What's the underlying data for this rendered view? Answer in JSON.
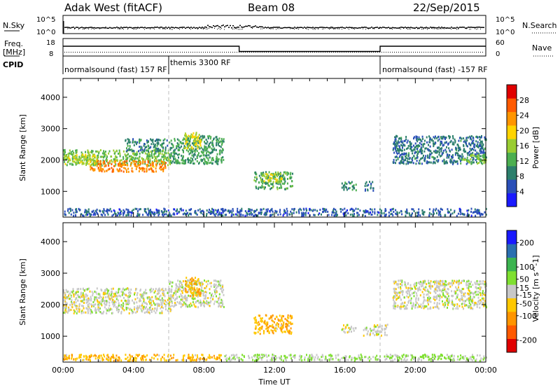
{
  "header": {
    "title": "Adak West (fitACF)",
    "beam": "Beam 08",
    "date": "22/Sep/2015"
  },
  "top_strip": {
    "left_label": "N.Sky",
    "right_label": "N.Search",
    "left_ticks": [
      "10^5",
      "10^0"
    ],
    "right_ticks": [
      "10^5",
      "10^0"
    ]
  },
  "freq_strip": {
    "left_label_1": "Freq.",
    "left_label_2": "[MHz]",
    "left_ticks": [
      "18",
      "8"
    ],
    "right_label": "Nave",
    "right_ticks": [
      "60",
      "0"
    ],
    "freq_steps": [
      {
        "start_h": 0,
        "end_h": 10,
        "mhz": 13.6
      },
      {
        "start_h": 10,
        "end_h": 18,
        "mhz": 10.6
      },
      {
        "start_h": 18,
        "end_h": 24,
        "mhz": 13.6
      }
    ],
    "freq_range": [
      8,
      18
    ]
  },
  "cpid": {
    "label": "CPID",
    "segments": [
      {
        "start_h": 0,
        "label": "normalsound (fast) 157 RF"
      },
      {
        "start_h": 6,
        "label": "themis 3300 RF"
      },
      {
        "start_h": 18,
        "label": "normalsound (fast) -157 RF"
      }
    ]
  },
  "x_axis": {
    "label": "Time UT",
    "range_h": [
      0,
      24
    ],
    "ticks": [
      "00:00",
      "04:00",
      "08:00",
      "12:00",
      "16:00",
      "20:00",
      "00:00"
    ],
    "tick_hours": [
      0,
      4,
      8,
      12,
      16,
      20,
      24
    ]
  },
  "y_axis": {
    "label": "Slant Range [km]",
    "range_km": [
      180,
      4600
    ],
    "ticks": [
      "1000",
      "2000",
      "3000",
      "4000"
    ],
    "tick_values": [
      1000,
      2000,
      3000,
      4000
    ]
  },
  "boundaries_h": [
    6,
    18
  ],
  "chart_data": [
    {
      "type": "heatmap",
      "name_panel": "power",
      "colorbar_label": "Power [dB]",
      "colorbar_ticks": [
        "28",
        "24",
        "20",
        "16",
        "12",
        "8",
        "4"
      ],
      "colorbar_values": [
        28,
        24,
        20,
        16,
        12,
        8,
        4
      ],
      "range": [
        0,
        32
      ],
      "colors": [
        "#1a1aff",
        "#2a4fb8",
        "#2c7f6c",
        "#4caf50",
        "#9acd32",
        "#ffd400",
        "#ff9500",
        "#ff5a00",
        "#e00000"
      ],
      "regions": [
        {
          "t0": 0.0,
          "t1": 6.1,
          "r0": 1850,
          "r1": 2350,
          "value": 14
        },
        {
          "t0": 1.5,
          "t1": 5.8,
          "r0": 1650,
          "r1": 2000,
          "value": 24
        },
        {
          "t0": 0.0,
          "t1": 2.0,
          "r0": 1900,
          "r1": 2200,
          "value": 17
        },
        {
          "t0": 3.5,
          "t1": 5.9,
          "r0": 2300,
          "r1": 2700,
          "value": 9
        },
        {
          "t0": 6.0,
          "t1": 9.1,
          "r0": 1900,
          "r1": 2800,
          "value": 11
        },
        {
          "t0": 6.8,
          "t1": 7.8,
          "r0": 2400,
          "r1": 2900,
          "value": 18
        },
        {
          "t0": 10.8,
          "t1": 13.0,
          "r0": 1100,
          "r1": 1650,
          "value": 12
        },
        {
          "t0": 11.2,
          "t1": 12.4,
          "r0": 1300,
          "r1": 1600,
          "value": 17
        },
        {
          "t0": 15.8,
          "t1": 16.6,
          "r0": 1050,
          "r1": 1350,
          "value": 9
        },
        {
          "t0": 17.1,
          "t1": 17.6,
          "r0": 1050,
          "r1": 1350,
          "value": 8
        },
        {
          "t0": 18.7,
          "t1": 24.0,
          "r0": 1900,
          "r1": 2800,
          "value": 8
        },
        {
          "t0": 22.5,
          "t1": 24.0,
          "r0": 1900,
          "r1": 2200,
          "value": 14
        },
        {
          "t0": 0.0,
          "t1": 24.0,
          "r0": 250,
          "r1": 480,
          "value": 6
        }
      ]
    },
    {
      "type": "heatmap",
      "name_panel": "velocity",
      "colorbar_label": "Velocity [m s^-1]",
      "colorbar_ticks": [
        "200",
        "100",
        "50",
        "15",
        "-15",
        "-50",
        "-100",
        "-200"
      ],
      "colorbar_values": [
        200,
        100,
        50,
        15,
        -15,
        -50,
        -100,
        -200
      ],
      "range": [
        -250,
        250
      ],
      "colors": [
        "#e00000",
        "#ff5a00",
        "#ff9500",
        "#ffc800",
        "#c8c8c8",
        "#7fe030",
        "#3cb450",
        "#2a6fb0",
        "#1a1aff"
      ],
      "regions": [
        {
          "t0": 0.0,
          "t1": 6.1,
          "r0": 1750,
          "r1": 2550,
          "value": 0
        },
        {
          "t0": 6.0,
          "t1": 9.1,
          "r0": 1950,
          "r1": 2800,
          "value": 0
        },
        {
          "t0": 6.9,
          "t1": 7.8,
          "r0": 2300,
          "r1": 2900,
          "value": -70
        },
        {
          "t0": 10.8,
          "t1": 13.0,
          "r0": 1100,
          "r1": 1700,
          "value": -70
        },
        {
          "t0": 15.8,
          "t1": 16.6,
          "r0": 1150,
          "r1": 1400,
          "value": 0
        },
        {
          "t0": 17.0,
          "t1": 18.4,
          "r0": 1050,
          "r1": 1400,
          "value": 0
        },
        {
          "t0": 18.7,
          "t1": 24.0,
          "r0": 1900,
          "r1": 2800,
          "value": 0
        },
        {
          "t0": 0.0,
          "t1": 9.0,
          "r0": 250,
          "r1": 450,
          "value": -70
        },
        {
          "t0": 9.0,
          "t1": 24.0,
          "r0": 250,
          "r1": 450,
          "value": 35
        }
      ]
    }
  ]
}
